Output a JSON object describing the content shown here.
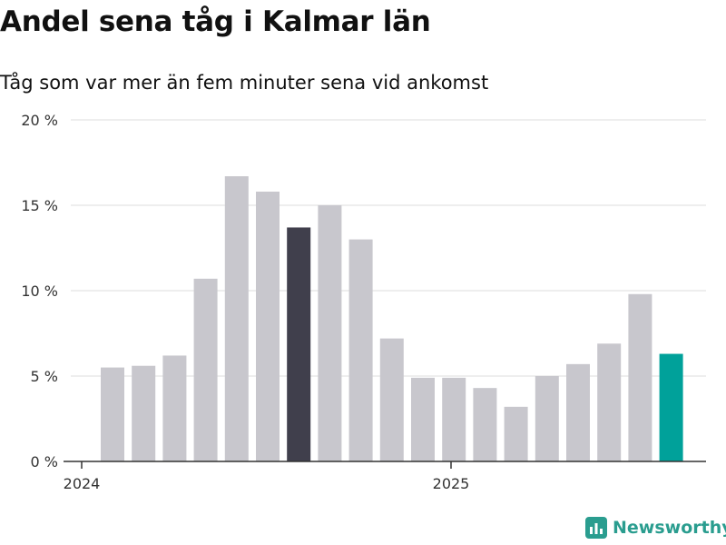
{
  "header": {
    "title": "Andel sena tåg i Kalmar län",
    "subtitle": "Tåg som var mer än fem minuter sena vid ankomst"
  },
  "brand": {
    "name": "Newsworthy",
    "icon": "bar-chart-logo-icon"
  },
  "colors": {
    "bar_default": "#c8c7cd",
    "bar_highlight": "#403f4c",
    "bar_latest": "#00a19a",
    "grid": "#dedede",
    "axis": "#333333",
    "brand": "#2a9d8f"
  },
  "chart_data": {
    "type": "bar",
    "x": [
      "2024-01",
      "2024-02",
      "2024-03",
      "2024-04",
      "2024-05",
      "2024-06",
      "2024-07",
      "2024-08",
      "2024-09",
      "2024-10",
      "2024-11",
      "2024-12",
      "2025-01",
      "2025-02",
      "2025-03",
      "2025-04",
      "2025-05",
      "2025-06",
      "2025-07"
    ],
    "values": [
      5.5,
      5.6,
      6.2,
      10.7,
      16.7,
      15.8,
      13.7,
      15.0,
      13.0,
      7.2,
      4.9,
      4.9,
      4.3,
      3.2,
      5.0,
      5.7,
      6.9,
      9.8,
      6.3
    ],
    "highlight": {
      "2024-07": "bar_highlight",
      "2025-07": "bar_latest"
    },
    "ylim": [
      0,
      20
    ],
    "yticks": [
      0,
      5,
      10,
      15,
      20
    ],
    "ytick_labels": [
      "0 %",
      "5 %",
      "10 %",
      "15 %",
      "20 %"
    ],
    "xticks": [
      "2024",
      "2025"
    ],
    "grid": true,
    "xlabel": "",
    "ylabel": ""
  }
}
